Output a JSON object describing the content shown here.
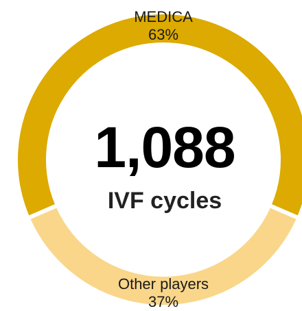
{
  "chart_data": {
    "type": "donut",
    "categories": [
      "MEDICA",
      "Other players"
    ],
    "values": [
      63,
      37
    ],
    "value_labels": [
      "63%",
      "37%"
    ],
    "colors": [
      "#dcaa00",
      "#f9d68a"
    ],
    "annotations": [
      "1,088",
      "IVF cycles"
    ]
  }
}
